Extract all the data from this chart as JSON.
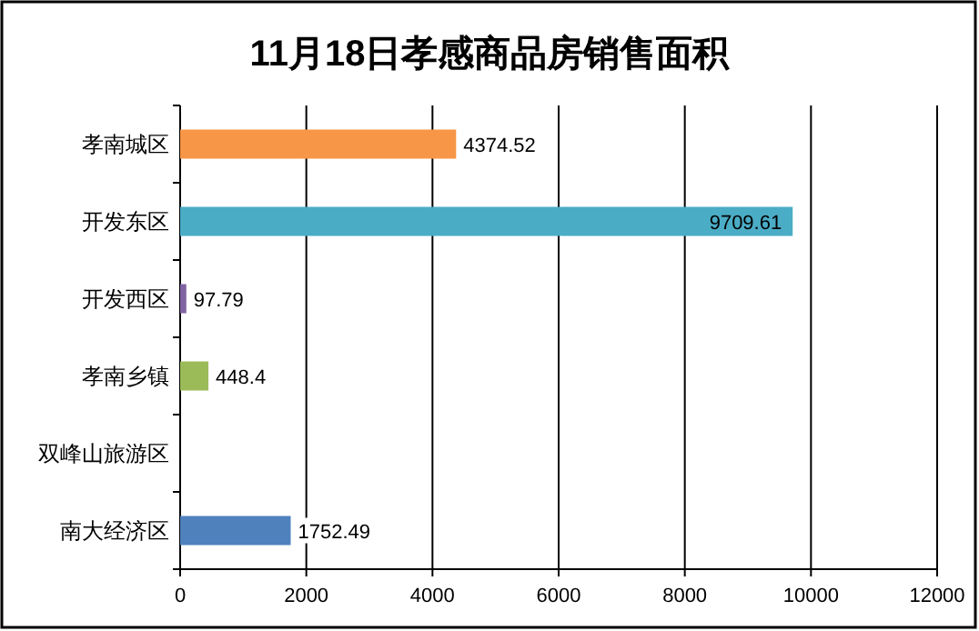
{
  "chart_data": {
    "type": "bar",
    "orientation": "horizontal",
    "title": "11月18日孝感商品房销售面积",
    "categories": [
      "孝南城区",
      "开发东区",
      "开发西区",
      "孝南乡镇",
      "双峰山旅游区",
      "南大经济区"
    ],
    "values": [
      4374.52,
      9709.61,
      97.79,
      448.4,
      null,
      1752.49
    ],
    "colors": [
      "#f79646",
      "#4bacc6",
      "#8064a2",
      "#9bbb59",
      null,
      "#4f81bd"
    ],
    "data_labels": true,
    "xlim": [
      0,
      12000
    ],
    "xticks": [
      0,
      2000,
      4000,
      6000,
      8000,
      10000,
      12000
    ],
    "grid": "x"
  }
}
